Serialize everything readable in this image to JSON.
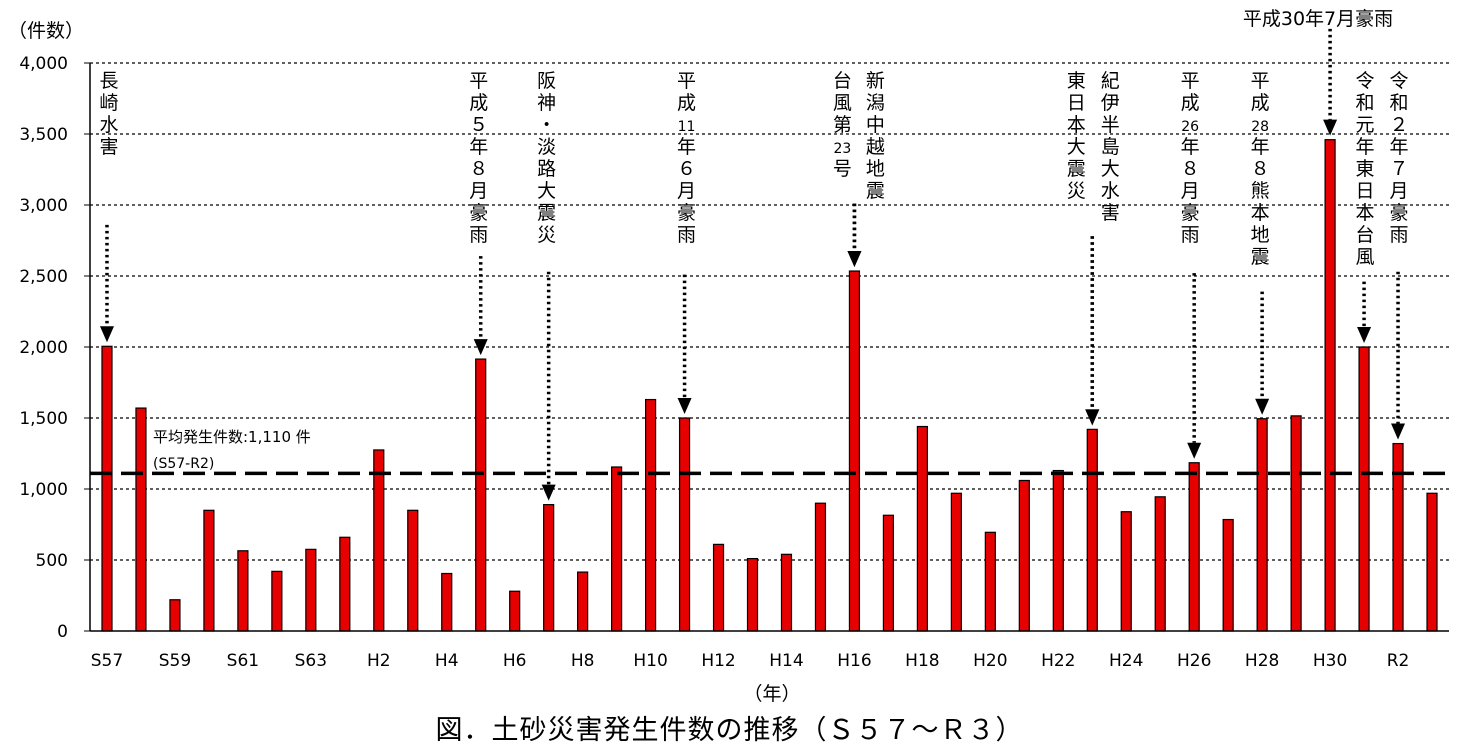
{
  "chart_data": {
    "type": "bar",
    "y_unit_label": "（件数）",
    "x_unit_label": "（年）",
    "ylim": [
      0,
      4000
    ],
    "yticks": [
      0,
      500,
      1000,
      1500,
      2000,
      2500,
      3000,
      3500,
      4000
    ],
    "ytick_labels": [
      "0",
      "500",
      "1,000",
      "1,500",
      "2,000",
      "2,500",
      "3,000",
      "3,500",
      "4,000"
    ],
    "grid": true,
    "bar_color": "#e60000",
    "categories": [
      "S57",
      "S58",
      "S59",
      "S60",
      "S61",
      "S62",
      "S63",
      "H1",
      "H2",
      "H3",
      "H4",
      "H5",
      "H6",
      "H7",
      "H8",
      "H9",
      "H10",
      "H11",
      "H12",
      "H13",
      "H14",
      "H15",
      "H16",
      "H17",
      "H18",
      "H19",
      "H20",
      "H21",
      "H22",
      "H23",
      "H24",
      "H25",
      "H26",
      "H27",
      "H28",
      "H29",
      "H30",
      "R1",
      "R2",
      "R3"
    ],
    "tick_labels": [
      "S57",
      "",
      "S59",
      "",
      "S61",
      "",
      "S63",
      "",
      "H2",
      "",
      "H4",
      "",
      "H6",
      "",
      "H8",
      "",
      "H10",
      "",
      "H12",
      "",
      "H14",
      "",
      "H16",
      "",
      "H18",
      "",
      "H20",
      "",
      "H22",
      "",
      "H24",
      "",
      "H26",
      "",
      "H28",
      "",
      "H30",
      "",
      "R2",
      ""
    ],
    "values": [
      2005,
      1570,
      220,
      850,
      565,
      420,
      575,
      660,
      1275,
      850,
      405,
      1915,
      280,
      890,
      415,
      1155,
      1630,
      1500,
      610,
      510,
      540,
      900,
      2535,
      815,
      1440,
      970,
      695,
      1060,
      1130,
      1420,
      840,
      945,
      1185,
      785,
      1495,
      1515,
      3460,
      2000,
      1320,
      970
    ],
    "average": {
      "value": 1110,
      "label_line1": "平均発生件数:1,110 件",
      "label_line2": "(S57-R2)"
    },
    "annotations": [
      {
        "index": 0,
        "text": "長崎水害",
        "y_from": 2860
      },
      {
        "index": 11,
        "text": "平成５年８月豪雨",
        "y_from": 2640
      },
      {
        "index": 13,
        "text": "阪神・淡路大震災",
        "y_from": 2530
      },
      {
        "index": 17,
        "text": "平成11年６月豪雨",
        "y_from": 2510
      },
      {
        "index": 22,
        "text": "新潟中越地震",
        "y_from": 3010
      },
      {
        "index": 22,
        "text": "台風第23号",
        "y_from": 3010
      },
      {
        "index": 29,
        "text": "東日本大震災",
        "y_from": 2780
      },
      {
        "index": 29,
        "text": "紀伊半島大水害",
        "y_from": 2780
      },
      {
        "index": 32,
        "text": "平成26年８月豪雨",
        "y_from": 2520
      },
      {
        "index": 34,
        "text": "平成28年８熊本地震",
        "y_from": 2390
      },
      {
        "index": 36,
        "text": "平成30年7月豪雨",
        "y_from": 4240
      },
      {
        "index": 37,
        "text": "令和元年東日本台風",
        "y_from": 2460
      },
      {
        "index": 38,
        "text": "令和２年７月豪雨",
        "y_from": 2530
      }
    ]
  },
  "caption": "図．土砂災害発生件数の推移（Ｓ５７～Ｒ３）"
}
